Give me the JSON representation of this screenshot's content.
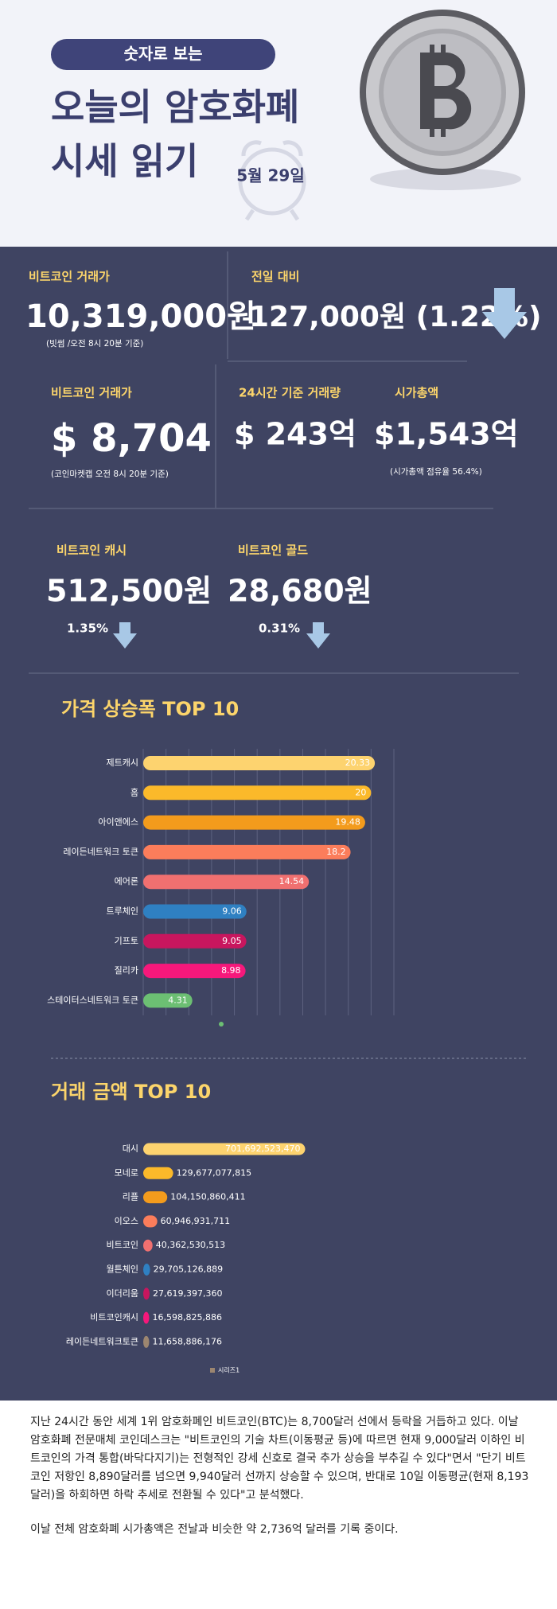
{
  "header": {
    "badge": "숫자로 보는",
    "title_lines": [
      "오늘의 암호화폐",
      "시세 읽기"
    ],
    "date": "5월 29일"
  },
  "summary": {
    "btc_krw": {
      "label": "비트코인 거래가",
      "value": "10,319,000원",
      "note": "(빗썸 /오전 8시 20분 기준)"
    },
    "change": {
      "label": "전일 대비",
      "value": "127,000원 (1.22%)"
    },
    "btc_usd": {
      "label": "비트코인 거래가",
      "value": "$ 8,704",
      "note": "(코인마켓캡 오전 8시 20분 기준)"
    },
    "volume": {
      "label": "24시간 기준 거래량",
      "value": "$ 243억"
    },
    "market_cap": {
      "label": "시가총액",
      "value": "$1,543억",
      "note": "(시가총액 점유율 56.4%)"
    },
    "bch": {
      "label": "비트코인 캐시",
      "value": "512,500원",
      "change": "1.35%"
    },
    "btg": {
      "label": "비트코인 골드",
      "value": "28,680원",
      "change": "0.31%"
    }
  },
  "chart_data": [
    {
      "type": "bar",
      "orientation": "horizontal",
      "title": "가격 상승폭 TOP 10",
      "categories": [
        "제트캐시",
        "홈",
        "아이앤에스",
        "레이든네트워크 토큰",
        "에어론",
        "트루체인",
        "기프토",
        "질리카",
        "스테이터스네트워크 토큰"
      ],
      "values": [
        20.33,
        20,
        19.48,
        18.2,
        14.54,
        9.06,
        9.05,
        8.98,
        4.31
      ],
      "colors": [
        "#fdd36f",
        "#fbb92a",
        "#f39b1c",
        "#fb7d5b",
        "#f07070",
        "#2f80c2",
        "#c8165e",
        "#f6187b",
        "#6cbf73"
      ],
      "xlim": [
        0,
        22
      ],
      "xticks": [
        0,
        2,
        4,
        6,
        8,
        10,
        12,
        14,
        16,
        18,
        20,
        22
      ],
      "grid": true
    },
    {
      "type": "bar",
      "orientation": "horizontal",
      "title": "거래 금액 TOP 10",
      "categories": [
        "대시",
        "모네로",
        "리플",
        "이오스",
        "비트코인",
        "월튼체인",
        "이더리움",
        "비트코인캐시",
        "레이든네트워크토큰"
      ],
      "series": [
        {
          "name": "시리즈1",
          "color": "#9c8670",
          "colors": [
            "#fdd36f",
            "#fbb92a",
            "#f39b1c",
            "#fb7d5b",
            "#f07070",
            "#2f80c2",
            "#c8165e",
            "#f6187b",
            "#9c8670"
          ],
          "values": [
            701692523470,
            129677077815,
            104150860411,
            60946931711,
            40362530513,
            29705126889,
            27619397360,
            16598825886,
            11658886176
          ],
          "value_labels": [
            "701,692,523,470",
            "129,677,077,815",
            "104,150,860,411",
            "60,946,931,711",
            "40,362,530,513",
            "29,705,126,889",
            "27,619,397,360",
            "16,598,825,886",
            "11,658,886,176"
          ]
        }
      ],
      "xlim": [
        0,
        800000000000
      ],
      "grid": false
    }
  ],
  "article": {
    "paragraphs": [
      "지난 24시간 동안 세계 1위 암호화폐인 비트코인(BTC)는 8,700달러 선에서 등락을 거듭하고 있다. 이날 암호화폐 전문매체 코인데스크는 \"비트코인의 기술 차트(이동평균 등)에 따르면 현재 9,000달러 이하인 비트코인의 가격 통합(바닥다지기)는 전형적인 강세 신호로 결국 추가 상승을 부추길 수 있다\"면서 \"단기 비트코인 저항인 8,890달러를 넘으면 9,940달러 선까지 상승할 수 있으며, 반대로 10일 이동평균(현재 8,193달러)을 하회하면 하락 추세로 전환될 수 있다\"고 분석했다.",
      "이날 전체 암호화폐 시가총액은 전날과 비슷한 약 2,736억 달러를 기록 중이다."
    ]
  }
}
